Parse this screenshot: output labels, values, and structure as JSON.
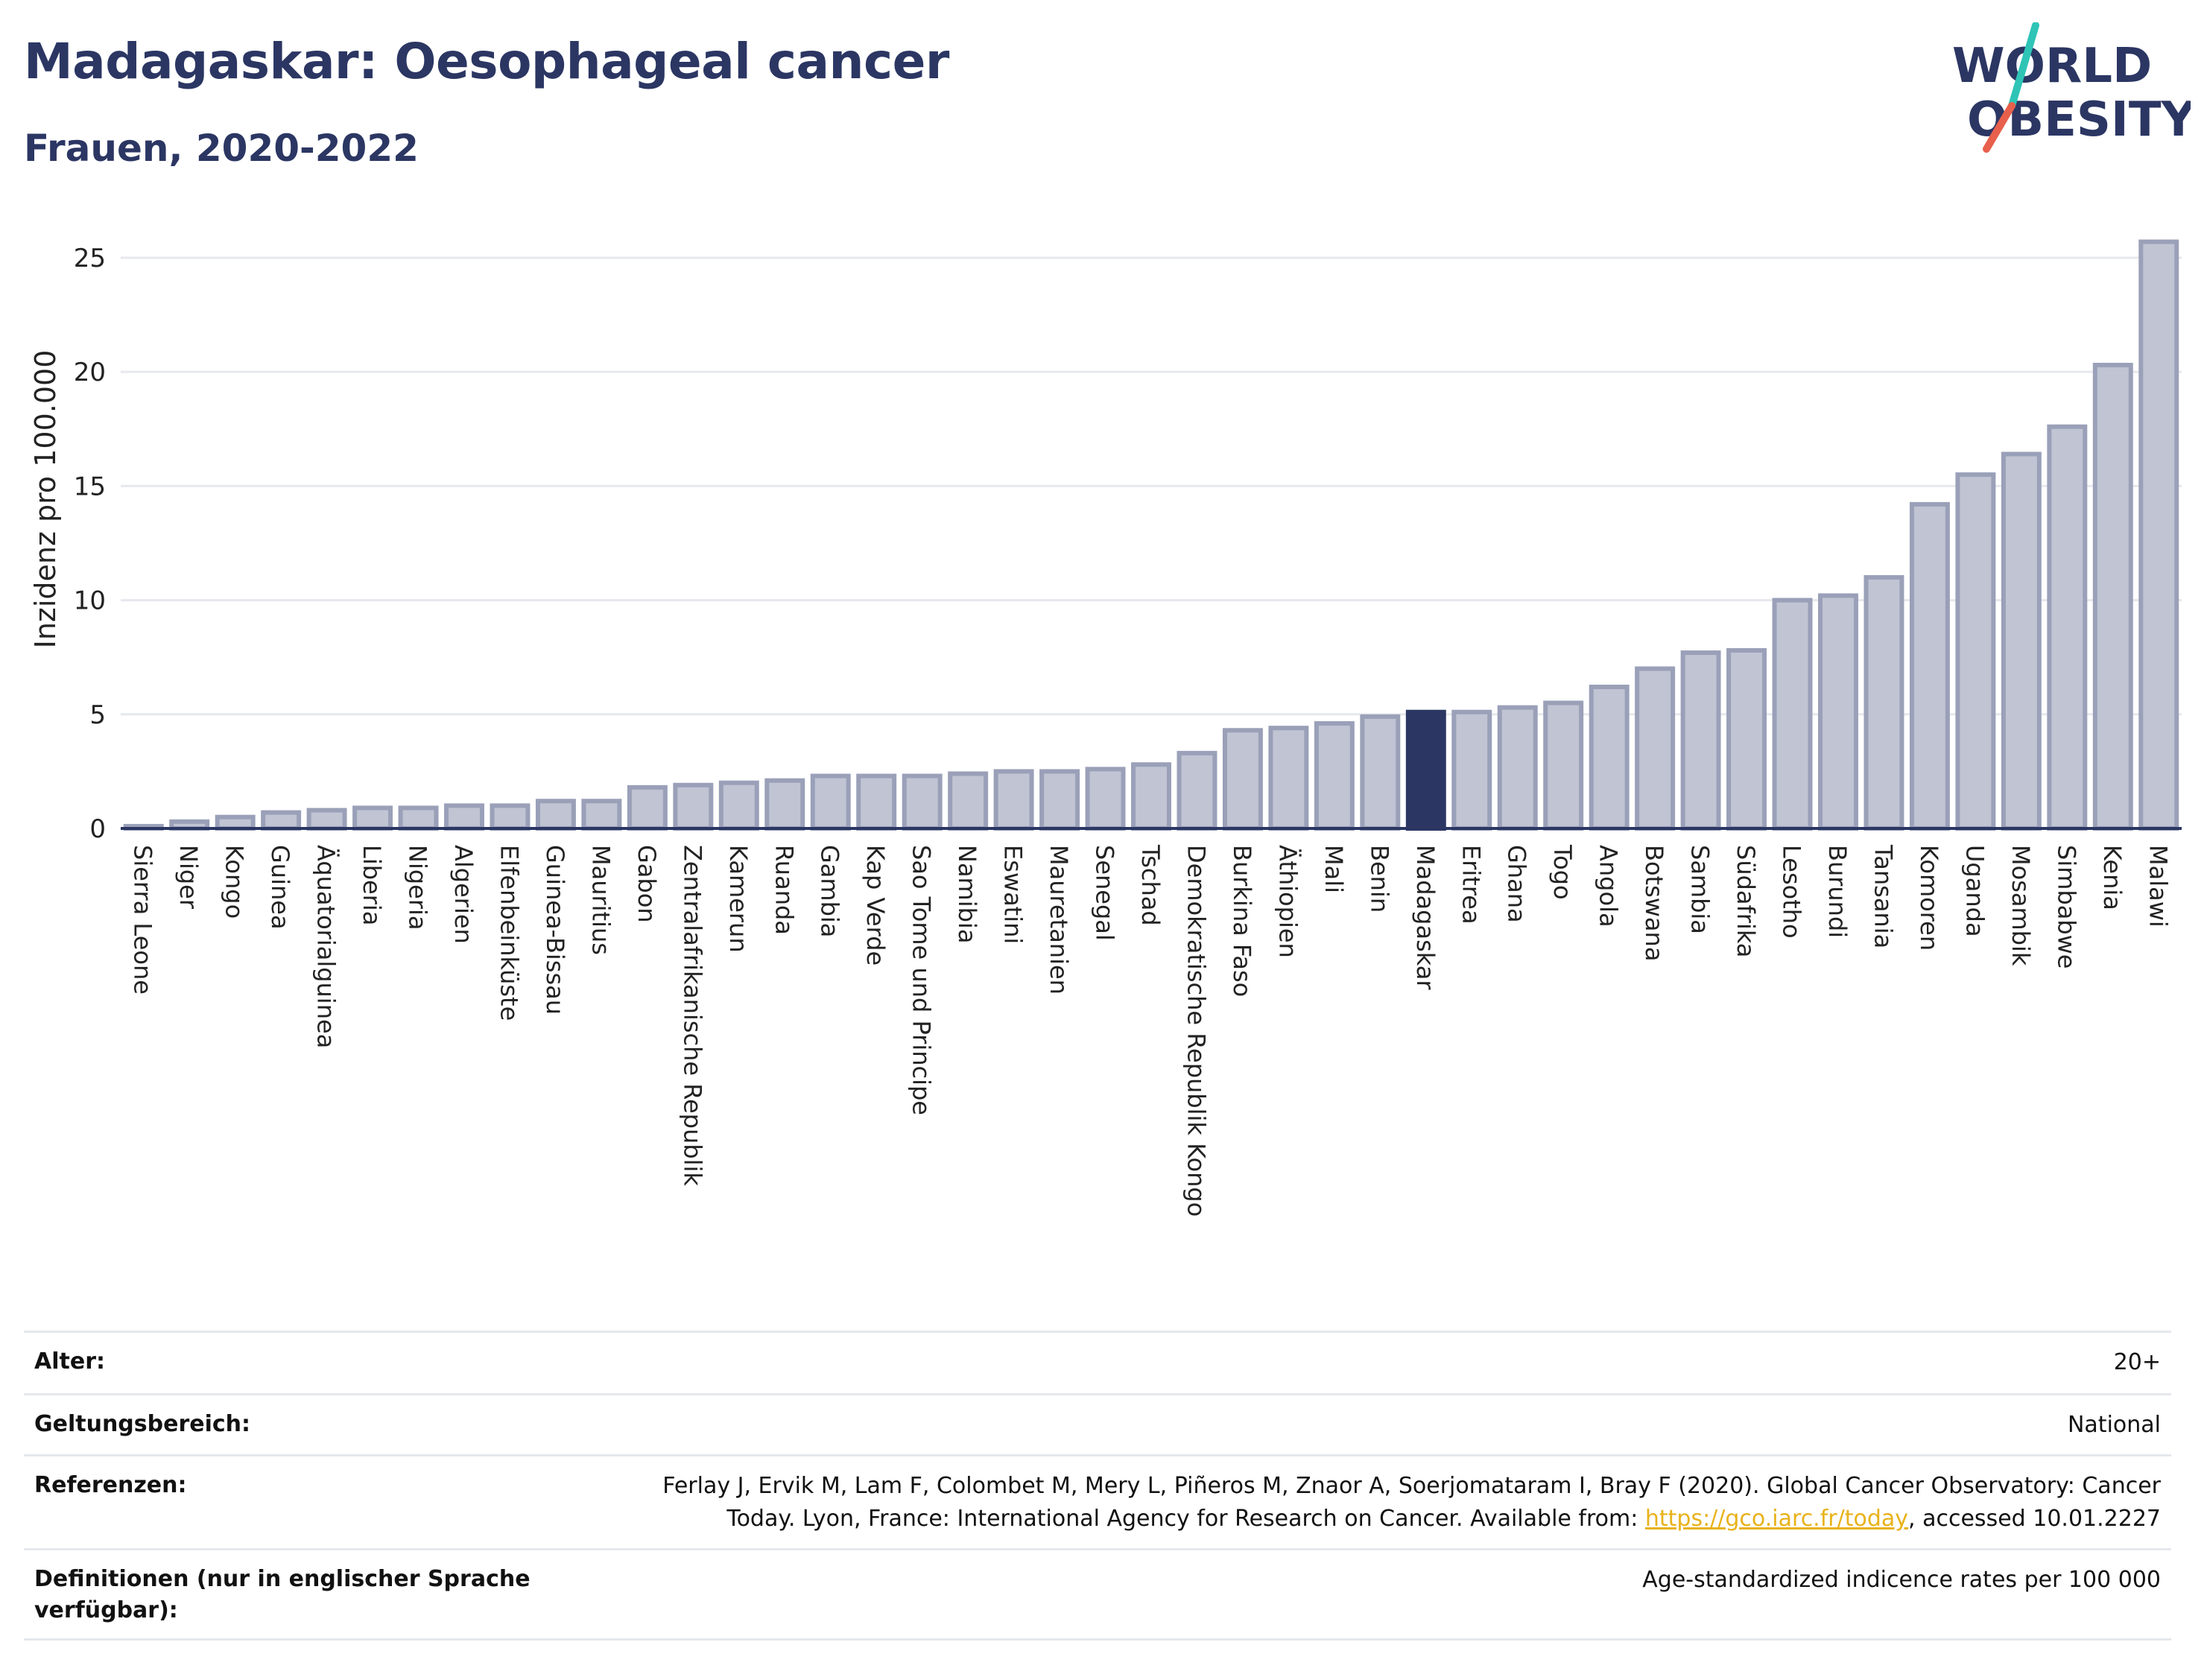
{
  "header": {
    "title": "Madagaskar: Oesophageal cancer",
    "subtitle": "Frauen, 2020-2022"
  },
  "logo": {
    "line1": "WORLD",
    "line2": "OBESITY",
    "colors": {
      "text": "#2b3663",
      "slash_top": "#2ec4b6",
      "slash_bottom": "#e8604c"
    }
  },
  "chart_data": {
    "type": "bar",
    "ylabel": "Inzidenz pro 100.000",
    "xlabel": "",
    "ylim": [
      0,
      26.5
    ],
    "yticks": [
      0,
      5,
      10,
      15,
      20,
      25
    ],
    "highlight": "Madagaskar",
    "colors": {
      "bar": "#c0c4d3",
      "bar_edge": "#9aa0b8",
      "highlight": "#2b3663",
      "grid": "#e6e8ee"
    },
    "categories": [
      "Sierra Leone",
      "Niger",
      "Kongo",
      "Guinea",
      "Äquatorialguinea",
      "Liberia",
      "Nigeria",
      "Algerien",
      "Elfenbeinküste",
      "Guinea-Bissau",
      "Mauritius",
      "Gabon",
      "Zentralafrikanische Republik",
      "Kamerun",
      "Ruanda",
      "Gambia",
      "Kap Verde",
      "Sao Tome und Principe",
      "Namibia",
      "Eswatini",
      "Mauretanien",
      "Senegal",
      "Tschad",
      "Demokratische Republik Kongo",
      "Burkina Faso",
      "Äthiopien",
      "Mali",
      "Benin",
      "Madagaskar",
      "Eritrea",
      "Ghana",
      "Togo",
      "Angola",
      "Botswana",
      "Sambia",
      "Südafrika",
      "Lesotho",
      "Burundi",
      "Tansania",
      "Komoren",
      "Uganda",
      "Mosambik",
      "Simbabwe",
      "Kenia",
      "Malawi"
    ],
    "values": [
      0.1,
      0.3,
      0.5,
      0.7,
      0.8,
      0.9,
      0.9,
      1.0,
      1.0,
      1.2,
      1.2,
      1.8,
      1.9,
      2.0,
      2.1,
      2.3,
      2.3,
      2.3,
      2.4,
      2.5,
      2.5,
      2.6,
      2.8,
      3.3,
      4.3,
      4.4,
      4.6,
      4.9,
      5.1,
      5.1,
      5.3,
      5.5,
      6.2,
      7.0,
      7.7,
      7.8,
      10.0,
      10.2,
      11.0,
      14.2,
      15.5,
      16.4,
      17.6,
      20.3,
      25.7
    ]
  },
  "meta": {
    "age_label": "Alter:",
    "age_value": "20+",
    "scope_label": "Geltungsbereich:",
    "scope_value": "National",
    "ref_label": "Referenzen:",
    "ref_text_1": "Ferlay J, Ervik M, Lam F, Colombet M, Mery L, Piñeros M, Znaor A, Soerjomataram I, Bray F (2020). Global Cancer Observatory: Cancer",
    "ref_text_2": "Today. Lyon, France: International Agency for Research on Cancer. Available from: ",
    "ref_link": "https://gco.iarc.fr/today",
    "ref_text_3": ", accessed 10.01.2227",
    "def_label": "Definitionen (nur in englischer Sprache verfügbar):",
    "def_value": "Age-standardized indicence rates per 100 000"
  }
}
